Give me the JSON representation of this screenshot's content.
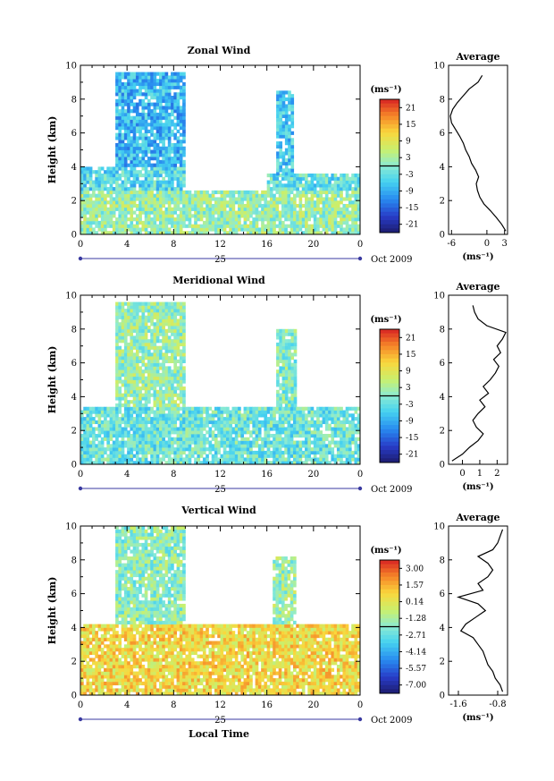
{
  "figure": {
    "xlabel": "Local Time",
    "date_label": "Oct 2009",
    "day_label": "25"
  },
  "chart_data": [
    {
      "type": "heatmap",
      "title": "Zonal Wind",
      "ylabel": "Height (km)",
      "xlabel": "Local Time",
      "x_ticks": [
        "0",
        "4",
        "8",
        "12",
        "16",
        "20",
        "0"
      ],
      "xlim_hours": [
        0,
        24
      ],
      "ylim": [
        0,
        10
      ],
      "y_ticks": [
        "0",
        "2",
        "4",
        "6",
        "8",
        "10"
      ],
      "colorbar": {
        "unit": "(ms⁻¹)",
        "ticks": [
          "21",
          "15",
          "9",
          "3",
          "-3",
          "-9",
          "-15",
          "-21"
        ],
        "range": [
          -24,
          24
        ]
      },
      "valid_blocks": [
        {
          "t": [
            0,
            24
          ],
          "z": [
            0,
            2.6
          ],
          "mean": 2
        },
        {
          "t": [
            0,
            9
          ],
          "z": [
            2.6,
            4.0
          ],
          "mean": -4
        },
        {
          "t": [
            3,
            9
          ],
          "z": [
            4.0,
            9.5
          ],
          "mean": -8
        },
        {
          "t": [
            16,
            24
          ],
          "z": [
            2.6,
            3.5
          ],
          "mean": -3
        },
        {
          "t": [
            16.8,
            18.2
          ],
          "z": [
            3.5,
            8.5
          ],
          "mean": -6
        }
      ],
      "profile": {
        "title": "Average",
        "unit": "(ms⁻¹)",
        "x_ticks": [
          "-6",
          "0",
          "3"
        ],
        "xlim": [
          -6.5,
          3.5
        ],
        "z": [
          0.2,
          0.6,
          1.0,
          1.4,
          1.8,
          2.2,
          2.6,
          3.0,
          3.4,
          3.8,
          4.2,
          4.6,
          5.0,
          5.4,
          5.8,
          6.2,
          6.6,
          7.0,
          7.4,
          7.8,
          8.2,
          8.6,
          9.0,
          9.4
        ],
        "values": [
          3.2,
          2.5,
          1.6,
          0.6,
          -0.5,
          -1.2,
          -1.6,
          -1.8,
          -1.4,
          -1.9,
          -2.6,
          -3.0,
          -3.6,
          -4.0,
          -4.6,
          -5.3,
          -6.0,
          -6.2,
          -5.8,
          -5.0,
          -4.0,
          -3.0,
          -1.5,
          -0.8
        ]
      }
    },
    {
      "type": "heatmap",
      "title": "Meridional Wind",
      "ylabel": "Height (km)",
      "xlabel": "Local Time",
      "x_ticks": [
        "0",
        "4",
        "8",
        "12",
        "16",
        "20",
        "0"
      ],
      "xlim_hours": [
        0,
        24
      ],
      "ylim": [
        0,
        10
      ],
      "y_ticks": [
        "0",
        "2",
        "4",
        "6",
        "8",
        "10"
      ],
      "colorbar": {
        "unit": "(ms⁻¹)",
        "ticks": [
          "21",
          "15",
          "9",
          "3",
          "-3",
          "-9",
          "-15",
          "-21"
        ],
        "range": [
          -24,
          24
        ]
      },
      "valid_blocks": [
        {
          "t": [
            0,
            24
          ],
          "z": [
            0,
            3.4
          ],
          "mean": -2
        },
        {
          "t": [
            3,
            9
          ],
          "z": [
            3.4,
            9.5
          ],
          "mean": 2
        },
        {
          "t": [
            16.8,
            18.5
          ],
          "z": [
            3.4,
            8.0
          ],
          "mean": 0
        }
      ],
      "profile": {
        "title": "Average",
        "unit": "(ms⁻¹)",
        "x_ticks": [
          "0",
          "1",
          "2"
        ],
        "xlim": [
          -0.8,
          2.6
        ],
        "z": [
          0.2,
          0.6,
          1.0,
          1.4,
          1.8,
          2.2,
          2.6,
          3.0,
          3.4,
          3.8,
          4.2,
          4.6,
          5.0,
          5.4,
          5.8,
          6.2,
          6.6,
          7.0,
          7.4,
          7.8,
          8.2,
          8.6,
          9.0,
          9.4
        ],
        "values": [
          -0.6,
          0.0,
          0.4,
          0.9,
          1.2,
          0.8,
          0.6,
          0.9,
          1.3,
          1.0,
          1.5,
          1.2,
          1.6,
          1.9,
          2.1,
          1.8,
          2.2,
          2.0,
          2.3,
          2.5,
          1.4,
          0.9,
          0.7,
          0.6
        ]
      }
    },
    {
      "type": "heatmap",
      "title": "Vertical Wind",
      "ylabel": "Height (km)",
      "xlabel": "Local Time",
      "x_ticks": [
        "0",
        "4",
        "8",
        "12",
        "16",
        "20",
        "0"
      ],
      "xlim_hours": [
        0,
        24
      ],
      "ylim": [
        0,
        10
      ],
      "y_ticks": [
        "0",
        "2",
        "4",
        "6",
        "8",
        "10"
      ],
      "colorbar": {
        "unit": "(ms⁻¹)",
        "ticks": [
          "3.00",
          "1.57",
          "0.14",
          "-1.28",
          "-2.71",
          "-4.14",
          "-5.57",
          "-7.00"
        ],
        "range": [
          -7.7,
          3.7
        ]
      },
      "valid_blocks": [
        {
          "t": [
            0,
            24
          ],
          "z": [
            0,
            4.2
          ],
          "mean": 0.6
        },
        {
          "t": [
            3,
            9
          ],
          "z": [
            4.2,
            10
          ],
          "mean": -1.8
        },
        {
          "t": [
            16.5,
            18.5
          ],
          "z": [
            4.2,
            8.2
          ],
          "mean": -1.5
        }
      ],
      "profile": {
        "title": "Average",
        "unit": "(ms⁻¹)",
        "x_ticks": [
          "-1.6",
          "-0.8"
        ],
        "xlim": [
          -1.8,
          -0.6
        ],
        "z": [
          0.2,
          0.6,
          1.0,
          1.4,
          1.8,
          2.2,
          2.6,
          3.0,
          3.4,
          3.8,
          4.2,
          4.6,
          5.0,
          5.4,
          5.8,
          6.2,
          6.6,
          7.0,
          7.4,
          7.8,
          8.2,
          8.6,
          9.0,
          9.4,
          9.8
        ],
        "values": [
          -0.7,
          -0.75,
          -0.85,
          -0.9,
          -1.0,
          -1.05,
          -1.1,
          -1.2,
          -1.3,
          -1.55,
          -1.45,
          -1.25,
          -1.05,
          -1.2,
          -1.6,
          -1.1,
          -1.2,
          -1.0,
          -0.9,
          -1.0,
          -1.2,
          -0.9,
          -0.8,
          -0.75,
          -0.7
        ]
      }
    }
  ]
}
